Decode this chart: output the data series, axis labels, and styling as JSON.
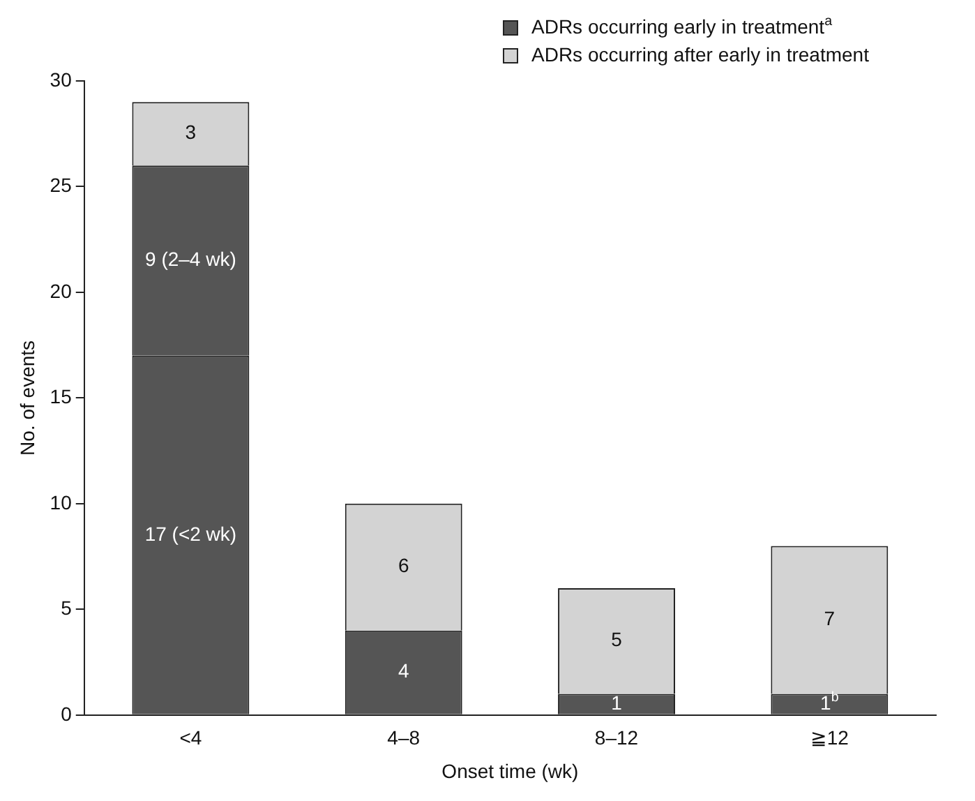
{
  "chart_data": {
    "type": "bar",
    "stacked": true,
    "xlabel": "Onset time (wk)",
    "ylabel": "No. of events",
    "categories": [
      "<4",
      "4–8",
      "8–12",
      "≧12"
    ],
    "series": [
      {
        "name": "ADRs occurring early in treatment$^{a}$",
        "color": "#555555",
        "values": [
          17,
          4,
          1,
          1
        ],
        "value_labels": [
          "17 (<2 wk)",
          "4",
          "1",
          "1$^{b}$"
        ]
      },
      {
        "color": "#555555",
        "values": [
          9,
          null,
          null,
          null
        ],
        "value_labels": [
          "9 (2–4 wk)",
          null,
          null,
          null
        ]
      },
      {
        "name": "ADRs occurring after early in treatment",
        "color": "#d3d3d3",
        "values": [
          3,
          6,
          5,
          7
        ],
        "value_labels": [
          "3",
          "6",
          "5",
          "7"
        ]
      }
    ],
    "ylim": [
      0,
      30
    ],
    "yticks": [
      0,
      5,
      10,
      15,
      20,
      25,
      30
    ],
    "grid": false,
    "legend": "top right"
  }
}
